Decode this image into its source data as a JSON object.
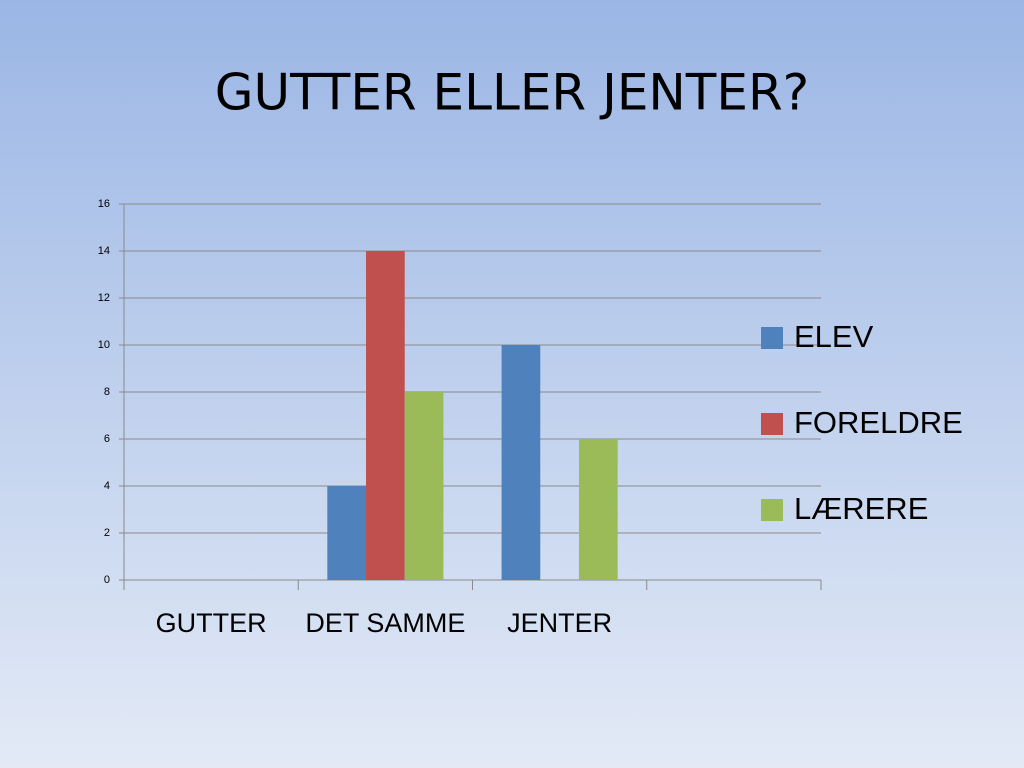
{
  "chart_data": {
    "type": "bar",
    "title": "GUTTER ELLER JENTER?",
    "categories": [
      "GUTTER",
      "DET SAMME",
      "JENTER",
      null
    ],
    "series": [
      {
        "name": "ELEV",
        "color": "#4f81bd",
        "values": [
          0,
          4,
          10,
          0
        ]
      },
      {
        "name": "FORELDRE",
        "color": "#c0504d",
        "values": [
          0,
          14,
          0,
          0
        ]
      },
      {
        "name": "LÆRERE",
        "color": "#9bbb59",
        "values": [
          0,
          8,
          6,
          0
        ]
      }
    ],
    "ylim": [
      0,
      16
    ],
    "yticks": [
      0,
      2,
      4,
      6,
      8,
      10,
      12,
      14,
      16
    ],
    "grid": true,
    "legend": "right"
  }
}
